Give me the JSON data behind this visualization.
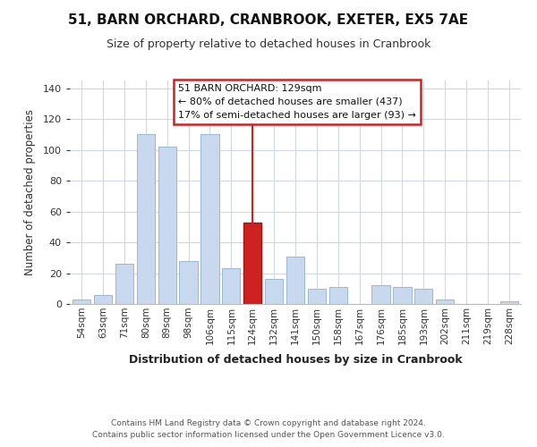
{
  "title": "51, BARN ORCHARD, CRANBROOK, EXETER, EX5 7AE",
  "subtitle": "Size of property relative to detached houses in Cranbrook",
  "xlabel": "Distribution of detached houses by size in Cranbrook",
  "ylabel": "Number of detached properties",
  "footnote1": "Contains HM Land Registry data © Crown copyright and database right 2024.",
  "footnote2": "Contains public sector information licensed under the Open Government Licence v3.0.",
  "bar_labels": [
    "54sqm",
    "63sqm",
    "71sqm",
    "80sqm",
    "89sqm",
    "98sqm",
    "106sqm",
    "115sqm",
    "124sqm",
    "132sqm",
    "141sqm",
    "150sqm",
    "158sqm",
    "167sqm",
    "176sqm",
    "185sqm",
    "193sqm",
    "202sqm",
    "211sqm",
    "219sqm",
    "228sqm"
  ],
  "bar_values": [
    3,
    6,
    26,
    110,
    102,
    28,
    110,
    23,
    53,
    16,
    31,
    10,
    11,
    0,
    12,
    11,
    10,
    3,
    0,
    0,
    2
  ],
  "highlight_index": 8,
  "highlight_color": "#cc2222",
  "normal_color": "#c8d9ef",
  "normal_edge_color": "#9ab8d8",
  "highlight_edge_color": "#aa1111",
  "annotation_title": "51 BARN ORCHARD: 129sqm",
  "annotation_line1": "← 80% of detached houses are smaller (437)",
  "annotation_line2": "17% of semi-detached houses are larger (93) →",
  "ylim": [
    0,
    145
  ],
  "background_color": "#ffffff",
  "grid_color": "#d0d8e8"
}
